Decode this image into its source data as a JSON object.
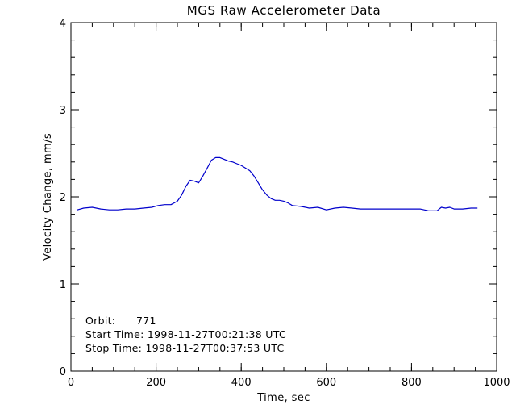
{
  "chart_data": {
    "type": "line",
    "title": "MGS Raw Accelerometer Data",
    "xlabel": "Time, sec",
    "ylabel": "Velocity Change, mm/s",
    "xlim": [
      0,
      1000
    ],
    "ylim": [
      0,
      4
    ],
    "x_ticks": [
      "0",
      "200",
      "400",
      "600",
      "800",
      "1000"
    ],
    "y_ticks": [
      "0",
      "1",
      "2",
      "3",
      "4"
    ],
    "grid": false,
    "line_color": "#0000cc",
    "series": [
      {
        "x": [
          15,
          30,
          50,
          70,
          90,
          110,
          130,
          150,
          170,
          190,
          205,
          220,
          235,
          250,
          260,
          270,
          280,
          290,
          300,
          310,
          320,
          330,
          340,
          350,
          360,
          370,
          380,
          390,
          400,
          410,
          420,
          430,
          440,
          450,
          460,
          470,
          480,
          490,
          500,
          510,
          520,
          540,
          560,
          580,
          600,
          620,
          640,
          660,
          680,
          700,
          720,
          740,
          760,
          780,
          800,
          820,
          840,
          860,
          870,
          880,
          890,
          900,
          920,
          940,
          955
        ],
        "y": [
          1.85,
          1.87,
          1.88,
          1.86,
          1.85,
          1.85,
          1.86,
          1.86,
          1.87,
          1.88,
          1.9,
          1.91,
          1.91,
          1.95,
          2.02,
          2.12,
          2.19,
          2.18,
          2.16,
          2.24,
          2.33,
          2.42,
          2.45,
          2.45,
          2.43,
          2.41,
          2.4,
          2.38,
          2.36,
          2.33,
          2.3,
          2.24,
          2.16,
          2.08,
          2.02,
          1.98,
          1.96,
          1.96,
          1.95,
          1.93,
          1.9,
          1.89,
          1.87,
          1.88,
          1.85,
          1.87,
          1.88,
          1.87,
          1.86,
          1.86,
          1.86,
          1.86,
          1.86,
          1.86,
          1.86,
          1.86,
          1.84,
          1.84,
          1.88,
          1.87,
          1.88,
          1.86,
          1.86,
          1.87,
          1.87
        ]
      }
    ],
    "annotations": [
      {
        "label": "Orbit:",
        "value": "      771"
      },
      {
        "label": "Start Time:",
        "value": " 1998-11-27T00:21:38 UTC"
      },
      {
        "label": "Stop Time:",
        "value": " 1998-11-27T00:37:53 UTC"
      }
    ]
  }
}
